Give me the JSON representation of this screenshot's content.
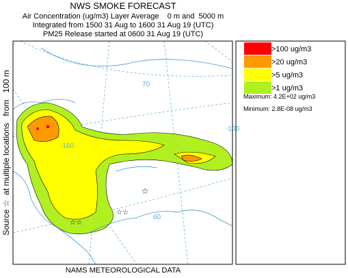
{
  "header": {
    "title": "NWS SMOKE FORECAST",
    "lines": [
      "Air Concentration (ug/m3) Layer Average    0 m and  5000 m",
      "Integrated from 1500 31 Aug to 1600 31 Aug 19 (UTC)",
      "PM25 Release started at 0600 31 Aug 19 (UTC)"
    ]
  },
  "side_label": "Source ☆  at multiple locations   from   100 m",
  "footer": "NAMS METEOROLOGICAL DATA",
  "legend": {
    "items": [
      {
        "label": ">100 ug/m3",
        "color": "#ff0000"
      },
      {
        "label": ">20 ug/m3",
        "color": "#ff9900"
      },
      {
        "label": ">5 ug/m3",
        "color": "#ffff00"
      },
      {
        "label": ">1 ug/m3",
        "color": "#b0f020"
      }
    ],
    "maximum": "Maximum: 4.2E+02 ug/m3",
    "minimum": "Minimum: 2.8E-08 ug/m3"
  },
  "map": {
    "labels": [
      "70",
      "-100",
      "-160",
      "60"
    ]
  }
}
